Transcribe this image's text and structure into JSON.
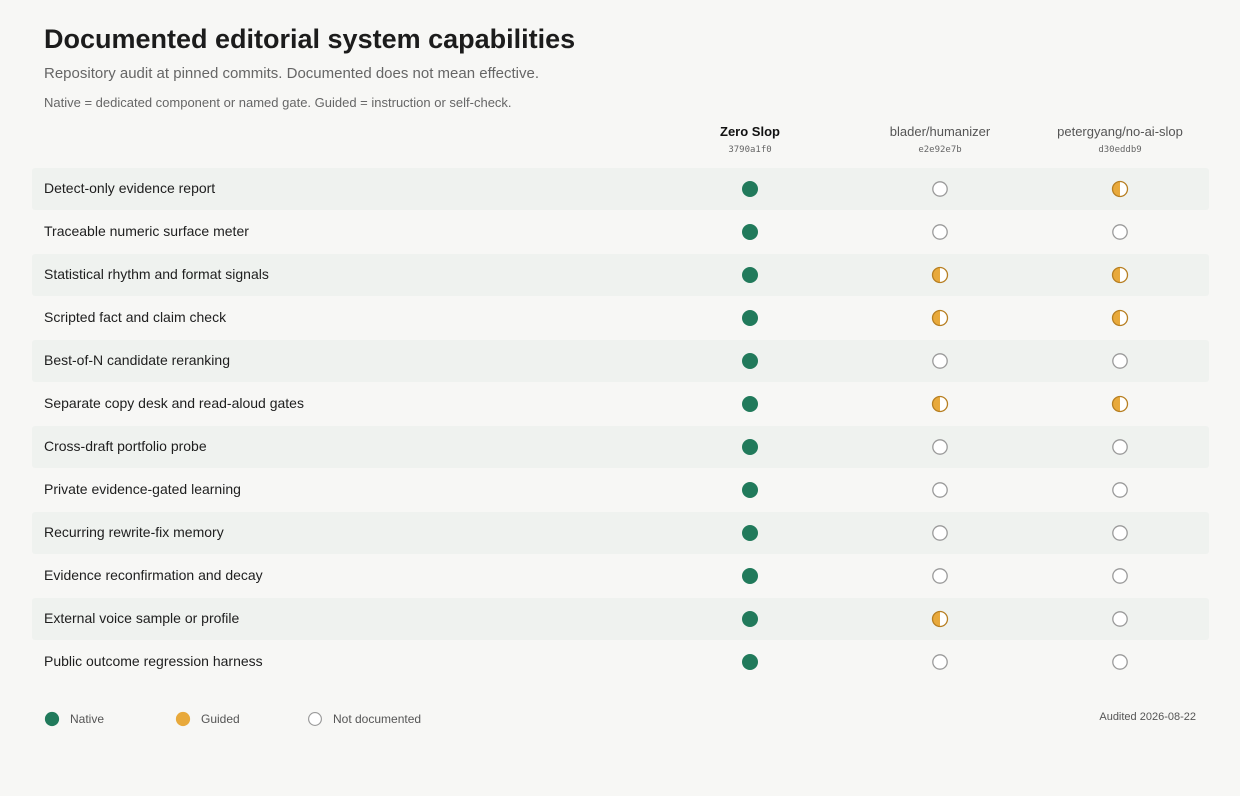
{
  "title": "Documented editorial system capabilities",
  "subtitle": "Repository audit at pinned commits. Documented does not mean effective.",
  "note": "Native = dedicated component or named gate. Guided = instruction or self-check.",
  "colors": {
    "native": "#217a5b",
    "guided": "#e8a93b",
    "guided_stroke": "#b77f22",
    "none_stroke": "#9a9a9a"
  },
  "chart_data": {
    "type": "table",
    "columns": [
      {
        "name": "Zero Slop",
        "commit": "3790a1f0",
        "emphasis": true
      },
      {
        "name": "blader/humanizer",
        "commit": "e2e92e7b",
        "emphasis": false
      },
      {
        "name": "petergyang/no-ai-slop",
        "commit": "d30eddb9",
        "emphasis": false
      }
    ],
    "rows": [
      {
        "label": "Detect-only evidence report",
        "values": [
          "native",
          "none",
          "guided"
        ]
      },
      {
        "label": "Traceable numeric surface meter",
        "values": [
          "native",
          "none",
          "none"
        ]
      },
      {
        "label": "Statistical rhythm and format signals",
        "values": [
          "native",
          "guided",
          "guided"
        ]
      },
      {
        "label": "Scripted fact and claim check",
        "values": [
          "native",
          "guided",
          "guided"
        ]
      },
      {
        "label": "Best-of-N candidate reranking",
        "values": [
          "native",
          "none",
          "none"
        ]
      },
      {
        "label": "Separate copy desk and read-aloud gates",
        "values": [
          "native",
          "guided",
          "guided"
        ]
      },
      {
        "label": "Cross-draft portfolio probe",
        "values": [
          "native",
          "none",
          "none"
        ]
      },
      {
        "label": "Private evidence-gated learning",
        "values": [
          "native",
          "none",
          "none"
        ]
      },
      {
        "label": "Recurring rewrite-fix memory",
        "values": [
          "native",
          "none",
          "none"
        ]
      },
      {
        "label": "Evidence reconfirmation and decay",
        "values": [
          "native",
          "none",
          "none"
        ]
      },
      {
        "label": "External voice sample or profile",
        "values": [
          "native",
          "guided",
          "none"
        ]
      },
      {
        "label": "Public outcome regression harness",
        "values": [
          "native",
          "none",
          "none"
        ]
      }
    ],
    "legend": [
      {
        "key": "native",
        "label": "Native"
      },
      {
        "key": "guided",
        "label": "Guided"
      },
      {
        "key": "none",
        "label": "Not documented"
      }
    ],
    "legend_placement": "bottom-left"
  },
  "footer": {
    "audit_text": "Audited 2026-08-22"
  }
}
